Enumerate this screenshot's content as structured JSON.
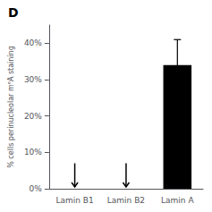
{
  "chart_data": {
    "type": "bar",
    "title": "D",
    "categories": [
      "Lamin B1",
      "Lamin B2",
      "Lamin A"
    ],
    "values": [
      0,
      0,
      34
    ],
    "errors": [
      0,
      0,
      7
    ],
    "color": "#000000",
    "ylabel": "% cells perinucleolar m⁶A staining",
    "ylim": [
      0,
      45
    ],
    "yticks": [
      {
        "value": 0,
        "label": "0%"
      },
      {
        "value": 10,
        "label": "10%"
      },
      {
        "value": 20,
        "label": "20%"
      },
      {
        "value": 30,
        "label": "30%"
      },
      {
        "value": 40,
        "label": "40%"
      }
    ],
    "annotations": [
      {
        "type": "arrow",
        "x": "Lamin B1",
        "y_from": 7,
        "y_to": 0.5
      },
      {
        "type": "arrow",
        "x": "Lamin B2",
        "y_from": 7,
        "y_to": 0.5
      }
    ],
    "grid": false
  }
}
